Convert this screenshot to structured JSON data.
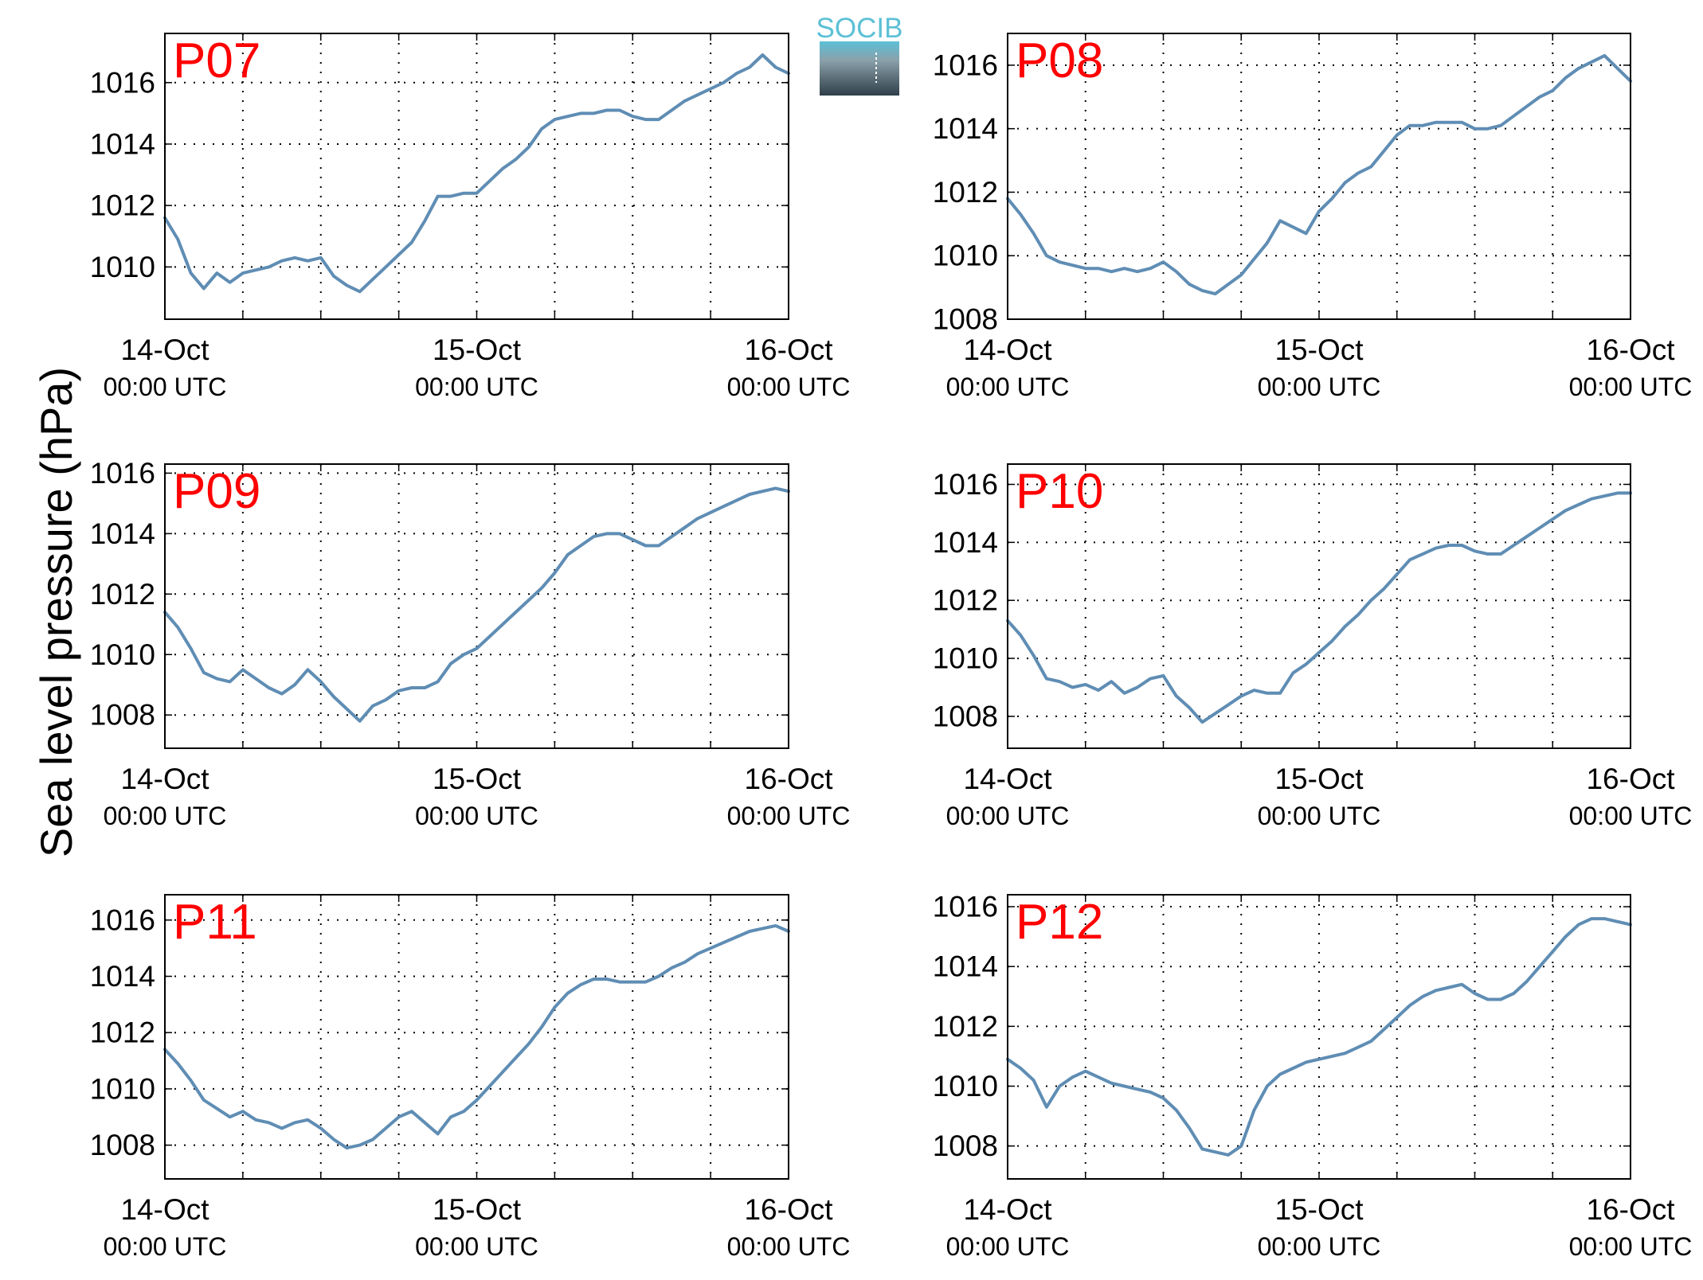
{
  "ylabel": "Sea level pressure (hPa)",
  "logo": {
    "text": "SOCIB",
    "colors": {
      "top": "#5cc0d6",
      "mid": "#8aa0aa",
      "bottom": "#2f3f49"
    }
  },
  "x_ticks": [
    {
      "date": "14-Oct",
      "time": "00:00 UTC"
    },
    {
      "date": "15-Oct",
      "time": "00:00 UTC"
    },
    {
      "date": "16-Oct",
      "time": "00:00 UTC"
    }
  ],
  "colors": {
    "line": "#5f8db4",
    "label": "#ff0000",
    "grid": "#000000"
  },
  "chart_data": [
    {
      "type": "line",
      "label": "P07",
      "x_unit": "hours since 14-Oct 00:00 UTC",
      "xlim": [
        0,
        48
      ],
      "ylim": [
        1008.3,
        1017.6
      ],
      "yticks": [
        1010,
        1012,
        1014,
        1016
      ],
      "grid": true,
      "x": [
        0,
        1,
        2,
        3,
        4,
        5,
        6,
        7,
        8,
        9,
        10,
        11,
        12,
        13,
        14,
        15,
        16,
        17,
        18,
        19,
        20,
        21,
        22,
        23,
        24,
        25,
        26,
        27,
        28,
        29,
        30,
        31,
        32,
        33,
        34,
        35,
        36,
        37,
        38,
        39,
        40,
        41,
        42,
        43,
        44,
        45,
        46,
        47,
        48
      ],
      "values": [
        1011.6,
        1010.9,
        1009.8,
        1009.3,
        1009.8,
        1009.5,
        1009.8,
        1009.9,
        1010.0,
        1010.2,
        1010.3,
        1010.2,
        1010.3,
        1009.7,
        1009.4,
        1009.2,
        1009.6,
        1010.0,
        1010.4,
        1010.8,
        1011.5,
        1012.3,
        1012.3,
        1012.4,
        1012.4,
        1012.8,
        1013.2,
        1013.5,
        1013.9,
        1014.5,
        1014.8,
        1014.9,
        1015.0,
        1015.0,
        1015.1,
        1015.1,
        1014.9,
        1014.8,
        1014.8,
        1015.1,
        1015.4,
        1015.6,
        1015.8,
        1016.0,
        1016.3,
        1016.5,
        1016.9,
        1016.5,
        1016.3
      ]
    },
    {
      "type": "line",
      "label": "P08",
      "x_unit": "hours since 14-Oct 00:00 UTC",
      "xlim": [
        0,
        48
      ],
      "ylim": [
        1008.0,
        1017.0
      ],
      "yticks": [
        1008,
        1010,
        1012,
        1014,
        1016
      ],
      "grid": true,
      "x": [
        0,
        1,
        2,
        3,
        4,
        5,
        6,
        7,
        8,
        9,
        10,
        11,
        12,
        13,
        14,
        15,
        16,
        17,
        18,
        19,
        20,
        21,
        22,
        23,
        24,
        25,
        26,
        27,
        28,
        29,
        30,
        31,
        32,
        33,
        34,
        35,
        36,
        37,
        38,
        39,
        40,
        41,
        42,
        43,
        44,
        45,
        46,
        47,
        48
      ],
      "values": [
        1011.8,
        1011.3,
        1010.7,
        1010.0,
        1009.8,
        1009.7,
        1009.6,
        1009.6,
        1009.5,
        1009.6,
        1009.5,
        1009.6,
        1009.8,
        1009.5,
        1009.1,
        1008.9,
        1008.8,
        1009.1,
        1009.4,
        1009.9,
        1010.4,
        1011.1,
        1010.9,
        1010.7,
        1011.4,
        1011.8,
        1012.3,
        1012.6,
        1012.8,
        1013.3,
        1013.8,
        1014.1,
        1014.1,
        1014.2,
        1014.2,
        1014.2,
        1014.0,
        1014.0,
        1014.1,
        1014.4,
        1014.7,
        1015.0,
        1015.2,
        1015.6,
        1015.9,
        1016.1,
        1016.3,
        1015.9,
        1015.5
      ]
    },
    {
      "type": "line",
      "label": "P09",
      "x_unit": "hours since 14-Oct 00:00 UTC",
      "xlim": [
        0,
        48
      ],
      "ylim": [
        1006.9,
        1016.3
      ],
      "yticks": [
        1008,
        1010,
        1012,
        1014,
        1016
      ],
      "grid": true,
      "x": [
        0,
        1,
        2,
        3,
        4,
        5,
        6,
        7,
        8,
        9,
        10,
        11,
        12,
        13,
        14,
        15,
        16,
        17,
        18,
        19,
        20,
        21,
        22,
        23,
        24,
        25,
        26,
        27,
        28,
        29,
        30,
        31,
        32,
        33,
        34,
        35,
        36,
        37,
        38,
        39,
        40,
        41,
        42,
        43,
        44,
        45,
        46,
        47,
        48
      ],
      "values": [
        1011.4,
        1010.9,
        1010.2,
        1009.4,
        1009.2,
        1009.1,
        1009.5,
        1009.2,
        1008.9,
        1008.7,
        1009.0,
        1009.5,
        1009.1,
        1008.6,
        1008.2,
        1007.8,
        1008.3,
        1008.5,
        1008.8,
        1008.9,
        1008.9,
        1009.1,
        1009.7,
        1010.0,
        1010.2,
        1010.6,
        1011.0,
        1011.4,
        1011.8,
        1012.2,
        1012.7,
        1013.3,
        1013.6,
        1013.9,
        1014.0,
        1014.0,
        1013.8,
        1013.6,
        1013.6,
        1013.9,
        1014.2,
        1014.5,
        1014.7,
        1014.9,
        1015.1,
        1015.3,
        1015.4,
        1015.5,
        1015.4
      ]
    },
    {
      "type": "line",
      "label": "P10",
      "x_unit": "hours since 14-Oct 00:00 UTC",
      "xlim": [
        0,
        48
      ],
      "ylim": [
        1006.9,
        1016.7
      ],
      "yticks": [
        1008,
        1010,
        1012,
        1014,
        1016
      ],
      "grid": true,
      "x": [
        0,
        1,
        2,
        3,
        4,
        5,
        6,
        7,
        8,
        9,
        10,
        11,
        12,
        13,
        14,
        15,
        16,
        17,
        18,
        19,
        20,
        21,
        22,
        23,
        24,
        25,
        26,
        27,
        28,
        29,
        30,
        31,
        32,
        33,
        34,
        35,
        36,
        37,
        38,
        39,
        40,
        41,
        42,
        43,
        44,
        45,
        46,
        47,
        48
      ],
      "values": [
        1011.3,
        1010.8,
        1010.1,
        1009.3,
        1009.2,
        1009.0,
        1009.1,
        1008.9,
        1009.2,
        1008.8,
        1009.0,
        1009.3,
        1009.4,
        1008.7,
        1008.3,
        1007.8,
        1008.1,
        1008.4,
        1008.7,
        1008.9,
        1008.8,
        1008.8,
        1009.5,
        1009.8,
        1010.2,
        1010.6,
        1011.1,
        1011.5,
        1012.0,
        1012.4,
        1012.9,
        1013.4,
        1013.6,
        1013.8,
        1013.9,
        1013.9,
        1013.7,
        1013.6,
        1013.6,
        1013.9,
        1014.2,
        1014.5,
        1014.8,
        1015.1,
        1015.3,
        1015.5,
        1015.6,
        1015.7,
        1015.7
      ]
    },
    {
      "type": "line",
      "label": "P11",
      "x_unit": "hours since 14-Oct 00:00 UTC",
      "xlim": [
        0,
        48
      ],
      "ylim": [
        1006.8,
        1016.9
      ],
      "yticks": [
        1008,
        1010,
        1012,
        1014,
        1016
      ],
      "grid": true,
      "x": [
        0,
        1,
        2,
        3,
        4,
        5,
        6,
        7,
        8,
        9,
        10,
        11,
        12,
        13,
        14,
        15,
        16,
        17,
        18,
        19,
        20,
        21,
        22,
        23,
        24,
        25,
        26,
        27,
        28,
        29,
        30,
        31,
        32,
        33,
        34,
        35,
        36,
        37,
        38,
        39,
        40,
        41,
        42,
        43,
        44,
        45,
        46,
        47,
        48
      ],
      "values": [
        1011.4,
        1010.9,
        1010.3,
        1009.6,
        1009.3,
        1009.0,
        1009.2,
        1008.9,
        1008.8,
        1008.6,
        1008.8,
        1008.9,
        1008.6,
        1008.2,
        1007.9,
        1008.0,
        1008.2,
        1008.6,
        1009.0,
        1009.2,
        1008.8,
        1008.4,
        1009.0,
        1009.2,
        1009.6,
        1010.1,
        1010.6,
        1011.1,
        1011.6,
        1012.2,
        1012.9,
        1013.4,
        1013.7,
        1013.9,
        1013.9,
        1013.8,
        1013.8,
        1013.8,
        1014.0,
        1014.3,
        1014.5,
        1014.8,
        1015.0,
        1015.2,
        1015.4,
        1015.6,
        1015.7,
        1015.8,
        1015.6
      ]
    },
    {
      "type": "line",
      "label": "P12",
      "x_unit": "hours since 14-Oct 00:00 UTC",
      "xlim": [
        0,
        48
      ],
      "ylim": [
        1006.9,
        1016.4
      ],
      "yticks": [
        1008,
        1010,
        1012,
        1014,
        1016
      ],
      "grid": true,
      "x": [
        0,
        1,
        2,
        3,
        4,
        5,
        6,
        7,
        8,
        9,
        10,
        11,
        12,
        13,
        14,
        15,
        16,
        17,
        18,
        19,
        20,
        21,
        22,
        23,
        24,
        25,
        26,
        27,
        28,
        29,
        30,
        31,
        32,
        33,
        34,
        35,
        36,
        37,
        38,
        39,
        40,
        41,
        42,
        43,
        44,
        45,
        46,
        47,
        48
      ],
      "values": [
        1010.9,
        1010.6,
        1010.2,
        1009.3,
        1010.0,
        1010.3,
        1010.5,
        1010.3,
        1010.1,
        1010.0,
        1009.9,
        1009.8,
        1009.6,
        1009.2,
        1008.6,
        1007.9,
        1007.8,
        1007.7,
        1008.0,
        1009.2,
        1010.0,
        1010.4,
        1010.6,
        1010.8,
        1010.9,
        1011.0,
        1011.1,
        1011.3,
        1011.5,
        1011.9,
        1012.3,
        1012.7,
        1013.0,
        1013.2,
        1013.3,
        1013.4,
        1013.1,
        1012.9,
        1012.9,
        1013.1,
        1013.5,
        1014.0,
        1014.5,
        1015.0,
        1015.4,
        1015.6,
        1015.6,
        1015.5,
        1015.4
      ]
    }
  ]
}
